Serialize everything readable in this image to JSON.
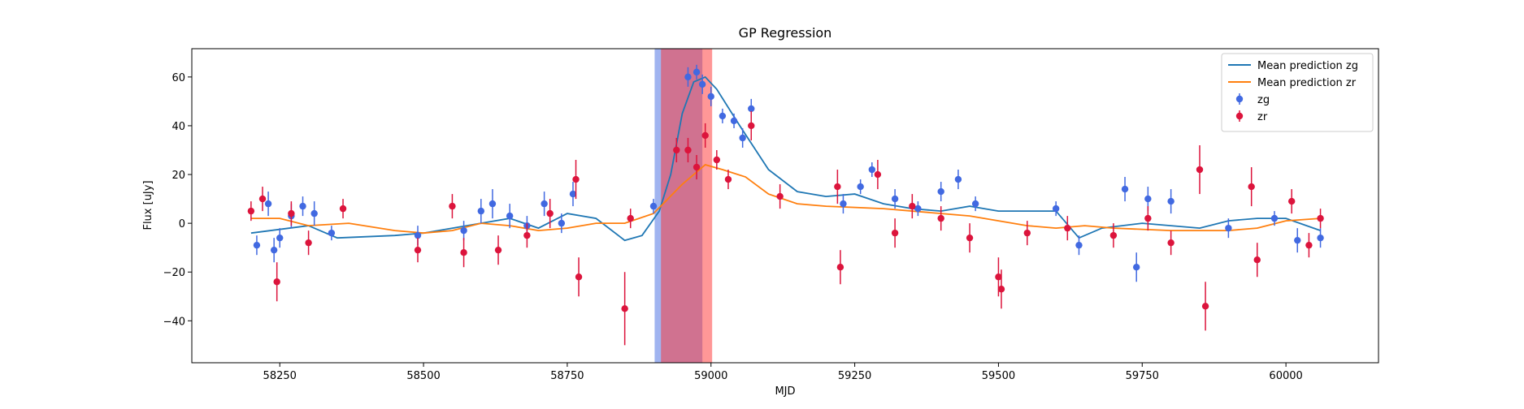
{
  "chart_data": {
    "type": "line",
    "title": "GP Regression",
    "x_label": "MJD",
    "y_label": "Flux [uJy]",
    "xlim": [
      58097,
      60161
    ],
    "ylim": [
      -57.2,
      71.6
    ],
    "xticks": [
      58250,
      58500,
      58750,
      59000,
      59250,
      59500,
      59750,
      60000
    ],
    "yticks": [
      {
        "value": -40,
        "label": "−40"
      },
      {
        "value": -20,
        "label": "−20"
      },
      0,
      20,
      40,
      60
    ],
    "legend": "upper right",
    "spans": [
      {
        "xmin": 58902,
        "xmax": 58985,
        "color": "#4169e1"
      },
      {
        "xmin": 58913,
        "xmax": 59002,
        "color": "#ff3030"
      }
    ],
    "series": [
      {
        "name": "Mean prediction zg",
        "kind": "line",
        "color": "#1f77b4",
        "x": [
          58200,
          58300,
          58350,
          58450,
          58500,
          58600,
          58650,
          58700,
          58750,
          58800,
          58850,
          58880,
          58910,
          58930,
          58950,
          58970,
          58990,
          59010,
          59050,
          59100,
          59150,
          59200,
          59250,
          59300,
          59350,
          59400,
          59450,
          59500,
          59600,
          59640,
          59680,
          59750,
          59800,
          59850,
          59900,
          59950,
          60000,
          60060
        ],
        "values": [
          -4,
          -1,
          -6,
          -5,
          -4,
          0,
          2,
          -2,
          4,
          2,
          -7,
          -5,
          5,
          20,
          45,
          58,
          60,
          55,
          40,
          22,
          13,
          11,
          12,
          8,
          6,
          5,
          7,
          5,
          5,
          -6,
          -2,
          0,
          -1,
          -2,
          1,
          2,
          2,
          -3
        ]
      },
      {
        "name": "Mean prediction zr",
        "kind": "line",
        "color": "#ff7f0e",
        "x": [
          58200,
          58250,
          58300,
          58370,
          58450,
          58500,
          58550,
          58600,
          58650,
          58700,
          58750,
          58800,
          58850,
          58900,
          58950,
          58990,
          59020,
          59060,
          59100,
          59150,
          59200,
          59300,
          59400,
          59450,
          59500,
          59550,
          59600,
          59650,
          59700,
          59800,
          59900,
          59950,
          60000,
          60060
        ],
        "values": [
          2,
          2,
          -1,
          0,
          -3,
          -4,
          -3,
          0,
          -1,
          -3,
          -2,
          0,
          0,
          4,
          16,
          24,
          22,
          19,
          12,
          8,
          7,
          6,
          4,
          3,
          1,
          -1,
          -2,
          -1,
          -2,
          -3,
          -3,
          -2,
          1,
          2
        ]
      },
      {
        "name": "zg",
        "kind": "errorbar",
        "color": "#4169e1",
        "x": [
          58210,
          58230,
          58240,
          58250,
          58270,
          58290,
          58310,
          58340,
          58490,
          58570,
          58600,
          58620,
          58650,
          58680,
          58710,
          58740,
          58760,
          58900,
          58960,
          58975,
          58985,
          59000,
          59020,
          59040,
          59055,
          59070,
          59230,
          59260,
          59280,
          59320,
          59360,
          59400,
          59430,
          59460,
          59600,
          59640,
          59720,
          59740,
          59760,
          59800,
          59900,
          59980,
          60020,
          60060
        ],
        "values": [
          -9,
          8,
          -11,
          -6,
          3,
          7,
          4,
          -4,
          -5,
          -3,
          5,
          8,
          3,
          -1,
          8,
          0,
          12,
          7,
          60,
          62,
          57,
          52,
          44,
          42,
          35,
          47,
          8,
          15,
          22,
          10,
          6,
          13,
          18,
          8,
          6,
          -9,
          14,
          -18,
          10,
          9,
          -2,
          2,
          -7,
          -6
        ],
        "errors": [
          4,
          5,
          5,
          4,
          5,
          4,
          5,
          3,
          4,
          4,
          5,
          6,
          5,
          4,
          5,
          4,
          5,
          3,
          4,
          3,
          4,
          4,
          3,
          3,
          4,
          4,
          4,
          3,
          3,
          4,
          3,
          4,
          4,
          3,
          3,
          4,
          5,
          6,
          5,
          5,
          4,
          3,
          5,
          4
        ]
      },
      {
        "name": "zr",
        "kind": "errorbar",
        "color": "#dc143c",
        "x": [
          58200,
          58220,
          58245,
          58270,
          58300,
          58360,
          58490,
          58550,
          58570,
          58630,
          58680,
          58720,
          58765,
          58770,
          58850,
          58860,
          58940,
          58960,
          58975,
          58990,
          59010,
          59030,
          59070,
          59120,
          59220,
          59225,
          59290,
          59320,
          59350,
          59400,
          59450,
          59500,
          59505,
          59550,
          59620,
          59700,
          59760,
          59800,
          59850,
          59860,
          59940,
          59950,
          60010,
          60040,
          60060
        ],
        "values": [
          5,
          10,
          -24,
          4,
          -8,
          6,
          -11,
          7,
          -12,
          -11,
          -5,
          4,
          18,
          -22,
          -35,
          2,
          30,
          30,
          23,
          36,
          26,
          18,
          40,
          11,
          15,
          -18,
          20,
          -4,
          7,
          2,
          -6,
          -22,
          -27,
          -4,
          -2,
          -5,
          2,
          -8,
          22,
          -34,
          15,
          -15,
          9,
          -9,
          2
        ],
        "errors": [
          4,
          5,
          8,
          5,
          5,
          4,
          5,
          5,
          6,
          6,
          5,
          6,
          8,
          8,
          15,
          4,
          5,
          5,
          5,
          5,
          4,
          4,
          6,
          5,
          7,
          7,
          6,
          6,
          5,
          5,
          6,
          8,
          8,
          5,
          5,
          5,
          5,
          5,
          10,
          10,
          8,
          7,
          5,
          5,
          4
        ]
      }
    ]
  }
}
